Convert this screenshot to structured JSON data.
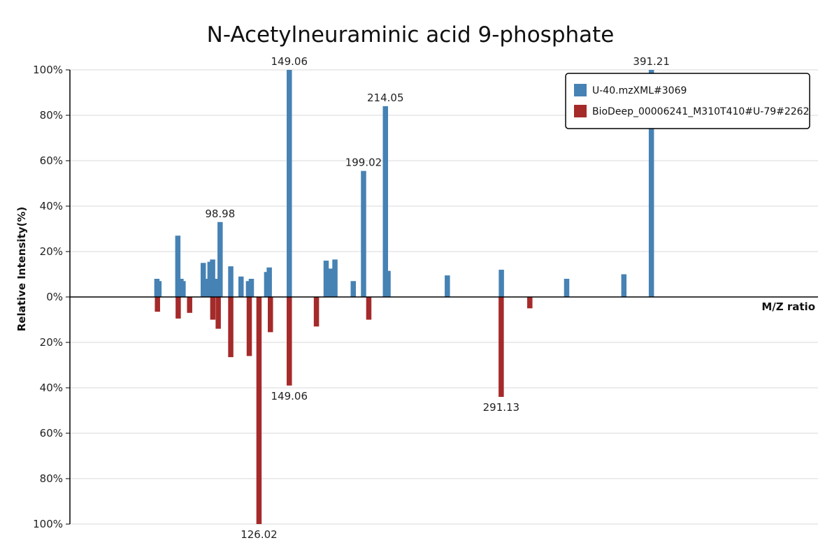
{
  "chart_data": {
    "type": "bar",
    "title": "N-Acetylneuraminic acid 9-phosphate",
    "xlabel": "M/Z ratio",
    "ylabel": "Relative Intensity(%)",
    "ylim": [
      -100,
      100
    ],
    "xlim": [
      40,
      440
    ],
    "grid": true,
    "legend_position": "top-right",
    "yticks": [
      "100%",
      "80%",
      "60%",
      "40%",
      "20%",
      "0%",
      "20%",
      "40%",
      "60%",
      "80%",
      "100%"
    ],
    "series": [
      {
        "name": "U-40.mzXML#3069",
        "color": "#4682b4",
        "direction": "up",
        "points": [
          {
            "x": 86.5,
            "y": 8
          },
          {
            "x": 87.6,
            "y": 7
          },
          {
            "x": 97.7,
            "y": 27
          },
          {
            "x": 99.4,
            "y": 8
          },
          {
            "x": 100.5,
            "y": 7
          },
          {
            "x": 111.3,
            "y": 15
          },
          {
            "x": 113.1,
            "y": 8
          },
          {
            "x": 114.9,
            "y": 15.5
          },
          {
            "x": 116.3,
            "y": 16.5
          },
          {
            "x": 118.1,
            "y": 8
          },
          {
            "x": 120.3,
            "y": 33,
            "label": "98.98"
          },
          {
            "x": 126.0,
            "y": 13.5
          },
          {
            "x": 131.5,
            "y": 9
          },
          {
            "x": 135.5,
            "y": 7
          },
          {
            "x": 137.0,
            "y": 8
          },
          {
            "x": 145.2,
            "y": 11
          },
          {
            "x": 146.6,
            "y": 13
          },
          {
            "x": 157.3,
            "y": 100,
            "label": "149.06"
          },
          {
            "x": 177.0,
            "y": 16
          },
          {
            "x": 179.5,
            "y": 12.5
          },
          {
            "x": 181.7,
            "y": 16.5
          },
          {
            "x": 191.5,
            "y": 7
          },
          {
            "x": 197.0,
            "y": 55.5,
            "label": "199.02"
          },
          {
            "x": 208.7,
            "y": 84,
            "label": "214.05"
          },
          {
            "x": 210.1,
            "y": 11.5
          },
          {
            "x": 241.8,
            "y": 9.5
          },
          {
            "x": 270.7,
            "y": 12
          },
          {
            "x": 305.6,
            "y": 8
          },
          {
            "x": 336.2,
            "y": 10
          },
          {
            "x": 350.9,
            "y": 100,
            "label": "391.21"
          }
        ]
      },
      {
        "name": "BioDeep_00006241_M310T410#U-79#2262",
        "color": "#a52a2a",
        "direction": "down",
        "points": [
          {
            "x": 86.8,
            "y": 6.5
          },
          {
            "x": 97.9,
            "y": 9.5
          },
          {
            "x": 104.0,
            "y": 7
          },
          {
            "x": 116.4,
            "y": 10
          },
          {
            "x": 119.3,
            "y": 14
          },
          {
            "x": 126.0,
            "y": 26.5
          },
          {
            "x": 135.9,
            "y": 26
          },
          {
            "x": 141.1,
            "y": 100,
            "label": "126.02"
          },
          {
            "x": 147.2,
            "y": 15.5
          },
          {
            "x": 157.3,
            "y": 39,
            "label": "149.06"
          },
          {
            "x": 171.8,
            "y": 13
          },
          {
            "x": 199.8,
            "y": 10
          },
          {
            "x": 270.6,
            "y": 44,
            "label": "291.13"
          },
          {
            "x": 285.9,
            "y": 5
          }
        ]
      }
    ]
  }
}
